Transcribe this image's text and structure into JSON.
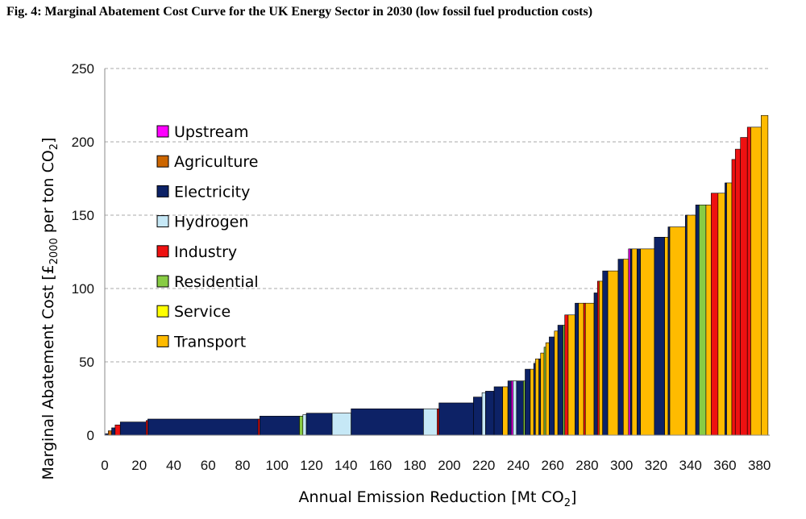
{
  "figure_title": "Fig. 4: Marginal Abatement Cost Curve for the UK Energy Sector in 2030 (low fossil fuel production costs)",
  "chart_data": {
    "type": "bar",
    "subtype": "marginal-abatement-cost-curve (variable-width step bars)",
    "title": "Fig. 4: Marginal Abatement Cost Curve for the UK Energy Sector in 2030 (low fossil fuel production costs)",
    "xlabel_main": "Annual Emission Reduction [Mt CO",
    "xlabel_sub": "2",
    "xlabel_tail": "]",
    "ylabel_main": "Marginal Abatement Cost [£",
    "ylabel_sub1": "2000",
    "ylabel_mid": " per ton CO",
    "ylabel_sub2": "2",
    "ylabel_tail": "]",
    "xlim": [
      0,
      386
    ],
    "ylim": [
      0,
      250
    ],
    "xticks": [
      0,
      20,
      40,
      60,
      80,
      100,
      120,
      140,
      160,
      180,
      200,
      220,
      240,
      260,
      280,
      300,
      320,
      340,
      360,
      380
    ],
    "yticks": [
      0,
      50,
      100,
      150,
      200,
      250
    ],
    "grid": "horizontal dashed",
    "legend_position": "upper-left",
    "sectors": [
      {
        "name": "Upstream",
        "color": "#ff00ff"
      },
      {
        "name": "Agriculture",
        "color": "#cc6600"
      },
      {
        "name": "Electricity",
        "color": "#0d2266"
      },
      {
        "name": "Hydrogen",
        "color": "#c6e8f6"
      },
      {
        "name": "Industry",
        "color": "#ee1111"
      },
      {
        "name": "Residential",
        "color": "#88cc44"
      },
      {
        "name": "Service",
        "color": "#ffff00"
      },
      {
        "name": "Transport",
        "color": "#ffbb00"
      }
    ],
    "blocks": [
      {
        "sector": "Electricity",
        "x0": 0,
        "x1": 2,
        "y": 1
      },
      {
        "sector": "Agriculture",
        "x0": 2,
        "x1": 4,
        "y": 3
      },
      {
        "sector": "Electricity",
        "x0": 4,
        "x1": 6,
        "y": 5
      },
      {
        "sector": "Industry",
        "x0": 6,
        "x1": 9,
        "y": 7
      },
      {
        "sector": "Electricity",
        "x0": 9,
        "x1": 24,
        "y": 9
      },
      {
        "sector": "Industry",
        "x0": 24,
        "x1": 25,
        "y": 10
      },
      {
        "sector": "Electricity",
        "x0": 25,
        "x1": 89,
        "y": 11
      },
      {
        "sector": "Industry",
        "x0": 89,
        "x1": 90,
        "y": 11
      },
      {
        "sector": "Electricity",
        "x0": 90,
        "x1": 113,
        "y": 13
      },
      {
        "sector": "Residential",
        "x0": 113,
        "x1": 115,
        "y": 13
      },
      {
        "sector": "Hydrogen",
        "x0": 115,
        "x1": 117,
        "y": 14
      },
      {
        "sector": "Electricity",
        "x0": 117,
        "x1": 132,
        "y": 15
      },
      {
        "sector": "Hydrogen",
        "x0": 132,
        "x1": 143,
        "y": 15
      },
      {
        "sector": "Electricity",
        "x0": 143,
        "x1": 185,
        "y": 18
      },
      {
        "sector": "Hydrogen",
        "x0": 185,
        "x1": 193,
        "y": 18
      },
      {
        "sector": "Industry",
        "x0": 193,
        "x1": 194,
        "y": 18
      },
      {
        "sector": "Electricity",
        "x0": 194,
        "x1": 214,
        "y": 22
      },
      {
        "sector": "Electricity",
        "x0": 214,
        "x1": 219,
        "y": 26
      },
      {
        "sector": "Hydrogen",
        "x0": 219,
        "x1": 221,
        "y": 29
      },
      {
        "sector": "Electricity",
        "x0": 221,
        "x1": 226,
        "y": 30
      },
      {
        "sector": "Electricity",
        "x0": 226,
        "x1": 231,
        "y": 33
      },
      {
        "sector": "Transport",
        "x0": 231,
        "x1": 234,
        "y": 33
      },
      {
        "sector": "Electricity",
        "x0": 234,
        "x1": 236,
        "y": 37
      },
      {
        "sector": "Upstream",
        "x0": 236,
        "x1": 237,
        "y": 37
      },
      {
        "sector": "Hydrogen",
        "x0": 237,
        "x1": 239,
        "y": 37
      },
      {
        "sector": "Electricity",
        "x0": 239,
        "x1": 243,
        "y": 37
      },
      {
        "sector": "Residential",
        "x0": 243,
        "x1": 244,
        "y": 37
      },
      {
        "sector": "Electricity",
        "x0": 244,
        "x1": 247,
        "y": 45
      },
      {
        "sector": "Transport",
        "x0": 247,
        "x1": 249,
        "y": 45
      },
      {
        "sector": "Electricity",
        "x0": 249,
        "x1": 250,
        "y": 49
      },
      {
        "sector": "Transport",
        "x0": 250,
        "x1": 252,
        "y": 52
      },
      {
        "sector": "Electricity",
        "x0": 252,
        "x1": 253,
        "y": 52
      },
      {
        "sector": "Transport",
        "x0": 253,
        "x1": 255,
        "y": 56
      },
      {
        "sector": "Residential",
        "x0": 255,
        "x1": 256,
        "y": 60
      },
      {
        "sector": "Transport",
        "x0": 256,
        "x1": 258,
        "y": 63
      },
      {
        "sector": "Electricity",
        "x0": 258,
        "x1": 261,
        "y": 67
      },
      {
        "sector": "Transport",
        "x0": 261,
        "x1": 263,
        "y": 71
      },
      {
        "sector": "Electricity",
        "x0": 263,
        "x1": 266,
        "y": 75
      },
      {
        "sector": "Residential",
        "x0": 266,
        "x1": 267,
        "y": 75
      },
      {
        "sector": "Industry",
        "x0": 267,
        "x1": 269,
        "y": 82
      },
      {
        "sector": "Transport",
        "x0": 269,
        "x1": 273,
        "y": 82
      },
      {
        "sector": "Electricity",
        "x0": 273,
        "x1": 275,
        "y": 90
      },
      {
        "sector": "Transport",
        "x0": 275,
        "x1": 278,
        "y": 90
      },
      {
        "sector": "Industry",
        "x0": 278,
        "x1": 279,
        "y": 90
      },
      {
        "sector": "Transport",
        "x0": 279,
        "x1": 284,
        "y": 90
      },
      {
        "sector": "Electricity",
        "x0": 284,
        "x1": 286,
        "y": 97
      },
      {
        "sector": "Industry",
        "x0": 286,
        "x1": 287,
        "y": 105
      },
      {
        "sector": "Transport",
        "x0": 287,
        "x1": 289,
        "y": 105
      },
      {
        "sector": "Electricity",
        "x0": 289,
        "x1": 292,
        "y": 112
      },
      {
        "sector": "Transport",
        "x0": 292,
        "x1": 298,
        "y": 112
      },
      {
        "sector": "Electricity",
        "x0": 298,
        "x1": 301,
        "y": 120
      },
      {
        "sector": "Transport",
        "x0": 301,
        "x1": 304,
        "y": 120
      },
      {
        "sector": "Upstream",
        "x0": 304,
        "x1": 305,
        "y": 127
      },
      {
        "sector": "Electricity",
        "x0": 305,
        "x1": 306,
        "y": 127
      },
      {
        "sector": "Transport",
        "x0": 306,
        "x1": 309,
        "y": 127
      },
      {
        "sector": "Electricity",
        "x0": 309,
        "x1": 311,
        "y": 127
      },
      {
        "sector": "Transport",
        "x0": 311,
        "x1": 319,
        "y": 127
      },
      {
        "sector": "Electricity",
        "x0": 319,
        "x1": 325,
        "y": 135
      },
      {
        "sector": "Transport",
        "x0": 325,
        "x1": 327,
        "y": 135
      },
      {
        "sector": "Electricity",
        "x0": 327,
        "x1": 328,
        "y": 142
      },
      {
        "sector": "Transport",
        "x0": 328,
        "x1": 337,
        "y": 142
      },
      {
        "sector": "Electricity",
        "x0": 337,
        "x1": 338,
        "y": 150
      },
      {
        "sector": "Transport",
        "x0": 338,
        "x1": 343,
        "y": 150
      },
      {
        "sector": "Electricity",
        "x0": 343,
        "x1": 345,
        "y": 157
      },
      {
        "sector": "Residential",
        "x0": 345,
        "x1": 349,
        "y": 157
      },
      {
        "sector": "Transport",
        "x0": 349,
        "x1": 352,
        "y": 157
      },
      {
        "sector": "Industry",
        "x0": 352,
        "x1": 356,
        "y": 165
      },
      {
        "sector": "Transport",
        "x0": 356,
        "x1": 360,
        "y": 165
      },
      {
        "sector": "Electricity",
        "x0": 360,
        "x1": 361,
        "y": 172
      },
      {
        "sector": "Transport",
        "x0": 361,
        "x1": 364,
        "y": 172
      },
      {
        "sector": "Industry",
        "x0": 364,
        "x1": 366,
        "y": 188
      },
      {
        "sector": "Industry",
        "x0": 366,
        "x1": 369,
        "y": 195
      },
      {
        "sector": "Industry",
        "x0": 369,
        "x1": 373,
        "y": 203
      },
      {
        "sector": "Industry",
        "x0": 373,
        "x1": 375,
        "y": 210
      },
      {
        "sector": "Transport",
        "x0": 375,
        "x1": 381,
        "y": 210
      },
      {
        "sector": "Transport",
        "x0": 381,
        "x1": 385,
        "y": 218
      }
    ]
  }
}
